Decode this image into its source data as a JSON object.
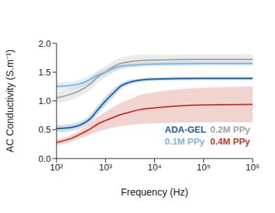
{
  "chart_data": {
    "type": "line",
    "x_label": "Frequency (Hz)",
    "y_label": "AC Conductivity (S.m⁻¹)",
    "log": "x",
    "grid": false,
    "legend": "lower right",
    "xlim": [
      100,
      1000000
    ],
    "xticks": [
      {
        "value": 100,
        "label": "10²"
      },
      {
        "value": 1000,
        "label": "10³"
      },
      {
        "value": 10000,
        "label": "10⁴"
      },
      {
        "value": 100000,
        "label": "10⁵"
      },
      {
        "value": 1000000,
        "label": "10⁶"
      }
    ],
    "ylim": [
      0,
      2
    ],
    "yticks": [
      {
        "value": 0,
        "label": "0.0"
      },
      0.5,
      {
        "value": 1,
        "label": "1.0"
      },
      1.5,
      {
        "value": 2,
        "label": "2.0"
      }
    ],
    "x": [
      100,
      200,
      300,
      500,
      700,
      1000,
      1500,
      2000,
      3000,
      5000,
      10000,
      100000,
      1000000
    ],
    "series": [
      {
        "name": "ADA-GEL",
        "color": "#1d5f9e",
        "values": [
          0.52,
          0.54,
          0.58,
          0.7,
          0.85,
          1.0,
          1.15,
          1.25,
          1.32,
          1.36,
          1.38,
          1.39,
          1.39
        ],
        "errors": [
          0.06,
          0.06,
          0.06,
          0.07,
          0.08,
          0.08,
          0.07,
          0.05,
          0.04,
          0.03,
          0.03,
          0.03,
          0.03
        ]
      },
      {
        "name": "0.2M PPy",
        "color": "#a3a3a3",
        "values": [
          1.05,
          1.12,
          1.18,
          1.3,
          1.42,
          1.5,
          1.6,
          1.65,
          1.68,
          1.7,
          1.71,
          1.72,
          1.72
        ],
        "errors": [
          0.1,
          0.1,
          0.1,
          0.1,
          0.1,
          0.1,
          0.1,
          0.1,
          0.1,
          0.1,
          0.09,
          0.09,
          0.09
        ]
      },
      {
        "name": "0.1M PPy",
        "color": "#80b5dc",
        "values": [
          1.25,
          1.27,
          1.3,
          1.38,
          1.45,
          1.5,
          1.57,
          1.6,
          1.62,
          1.63,
          1.64,
          1.65,
          1.65
        ],
        "errors": [
          0.07,
          0.07,
          0.07,
          0.07,
          0.06,
          0.06,
          0.05,
          0.05,
          0.04,
          0.04,
          0.04,
          0.04,
          0.04
        ]
      },
      {
        "name": "0.4M PPy",
        "color": "#c0392b",
        "values": [
          0.28,
          0.35,
          0.42,
          0.52,
          0.6,
          0.66,
          0.72,
          0.76,
          0.8,
          0.85,
          0.88,
          0.93,
          0.94
        ],
        "errors": [
          0.05,
          0.06,
          0.07,
          0.1,
          0.13,
          0.15,
          0.18,
          0.2,
          0.22,
          0.25,
          0.27,
          0.3,
          0.31
        ]
      }
    ]
  }
}
